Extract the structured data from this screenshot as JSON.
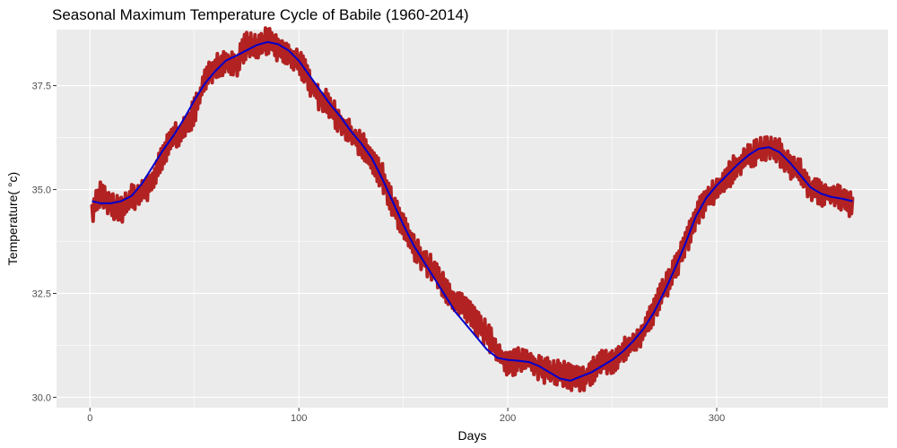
{
  "chart_data": {
    "type": "line",
    "title": "Seasonal Maximum Temperature Cycle of Babile (1960-2014)",
    "xlabel": "Days",
    "ylabel": "Temperature( °c)",
    "xlim": [
      -16,
      382
    ],
    "ylim": [
      29.75,
      38.85
    ],
    "x_ticks": [
      0,
      100,
      200,
      300
    ],
    "x_tick_labels": [
      "0",
      "100",
      "200",
      "300"
    ],
    "y_ticks": [
      30.0,
      32.5,
      35.0,
      37.5
    ],
    "y_tick_labels": [
      "30.0",
      "32.5",
      "35.0",
      "37.5"
    ],
    "grid": true,
    "colors": {
      "panel_bg": "#ebebeb",
      "grid_major": "#ffffff",
      "series_daily": "#b22222",
      "series_smooth": "#0000cd"
    },
    "series": [
      {
        "style": "thick-line-with-daily-noise",
        "x": [
          1,
          5,
          10,
          15,
          20,
          25,
          30,
          35,
          40,
          45,
          50,
          55,
          60,
          65,
          70,
          75,
          80,
          85,
          90,
          95,
          100,
          105,
          110,
          115,
          120,
          125,
          130,
          135,
          140,
          145,
          150,
          155,
          160,
          165,
          170,
          175,
          180,
          185,
          190,
          195,
          200,
          205,
          210,
          215,
          220,
          225,
          230,
          235,
          240,
          245,
          250,
          255,
          260,
          265,
          270,
          275,
          280,
          285,
          290,
          295,
          300,
          305,
          310,
          315,
          320,
          325,
          330,
          335,
          340,
          345,
          350,
          355,
          360,
          365
        ],
        "values": [
          34.5,
          34.9,
          34.6,
          34.5,
          34.8,
          34.9,
          35.2,
          35.8,
          36.3,
          36.4,
          36.9,
          37.6,
          38.0,
          38.1,
          38.0,
          38.5,
          38.4,
          38.6,
          38.4,
          38.2,
          38.1,
          37.6,
          37.2,
          37.0,
          36.6,
          36.3,
          36.1,
          35.7,
          35.3,
          34.6,
          34.1,
          33.6,
          33.3,
          33.0,
          32.6,
          32.3,
          32.1,
          31.8,
          31.5,
          31.1,
          30.8,
          30.9,
          30.9,
          30.7,
          30.6,
          30.6,
          30.5,
          30.4,
          30.6,
          30.9,
          30.8,
          31.1,
          31.3,
          31.6,
          32.1,
          32.6,
          33.1,
          33.7,
          34.3,
          34.8,
          35.0,
          35.3,
          35.6,
          35.8,
          35.9,
          36.0,
          35.9,
          35.6,
          35.4,
          35.0,
          34.9,
          34.9,
          34.8,
          34.6
        ]
      },
      {
        "style": "smooth-line",
        "x": [
          1,
          5,
          10,
          15,
          20,
          25,
          30,
          35,
          40,
          45,
          50,
          55,
          60,
          65,
          70,
          75,
          80,
          85,
          90,
          95,
          100,
          105,
          110,
          115,
          120,
          125,
          130,
          135,
          140,
          145,
          150,
          155,
          160,
          165,
          170,
          175,
          180,
          185,
          190,
          195,
          200,
          205,
          210,
          215,
          220,
          225,
          230,
          235,
          240,
          245,
          250,
          255,
          260,
          265,
          270,
          275,
          280,
          285,
          290,
          295,
          300,
          305,
          310,
          315,
          320,
          325,
          330,
          335,
          340,
          345,
          350,
          355,
          360,
          365
        ],
        "values": [
          34.72,
          34.67,
          34.67,
          34.72,
          34.85,
          35.15,
          35.55,
          35.95,
          36.3,
          36.7,
          37.15,
          37.55,
          37.85,
          38.1,
          38.22,
          38.35,
          38.48,
          38.55,
          38.5,
          38.35,
          38.1,
          37.75,
          37.4,
          37.05,
          36.75,
          36.4,
          36.1,
          35.75,
          35.25,
          34.7,
          34.15,
          33.65,
          33.25,
          32.85,
          32.45,
          32.05,
          31.75,
          31.45,
          31.15,
          30.95,
          30.9,
          30.88,
          30.85,
          30.75,
          30.6,
          30.45,
          30.4,
          30.5,
          30.6,
          30.75,
          30.9,
          31.1,
          31.35,
          31.65,
          32.05,
          32.55,
          33.1,
          33.7,
          34.35,
          34.8,
          35.1,
          35.35,
          35.6,
          35.82,
          35.98,
          36.02,
          35.9,
          35.65,
          35.35,
          35.05,
          34.9,
          34.82,
          34.78,
          34.72
        ]
      }
    ]
  }
}
